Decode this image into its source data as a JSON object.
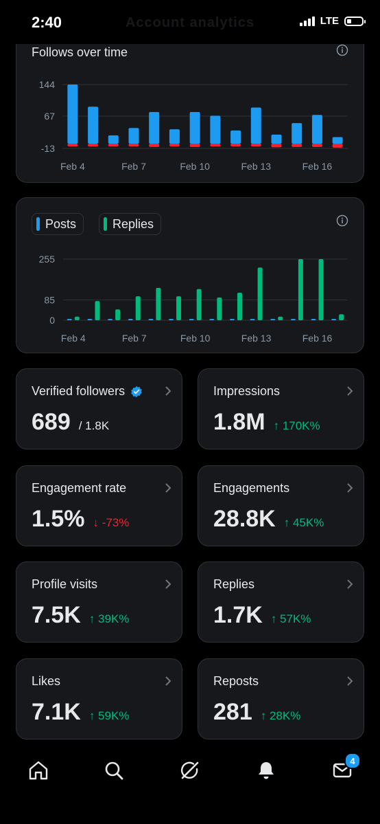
{
  "status_bar": {
    "time": "2:40",
    "network": "LTE"
  },
  "header": {
    "title": "Account analytics"
  },
  "follows_chart": {
    "title": "Follows over time",
    "icon": "info-icon"
  },
  "posts_chart": {
    "legend": [
      {
        "label": "Posts",
        "color": "#1d9bf0"
      },
      {
        "label": "Replies",
        "color": "#00ba7c"
      }
    ],
    "icon": "info-icon"
  },
  "chart_data": [
    {
      "type": "bar",
      "title": "Follows over time",
      "categories": [
        "Feb 4",
        "Feb 5",
        "Feb 6",
        "Feb 7",
        "Feb 8",
        "Feb 9",
        "Feb 10",
        "Feb 11",
        "Feb 12",
        "Feb 13",
        "Feb 14",
        "Feb 15",
        "Feb 16",
        "Feb 17"
      ],
      "tick_labels": [
        "Feb 4",
        "Feb 7",
        "Feb 10",
        "Feb 13",
        "Feb 16"
      ],
      "y_ticks": [
        "144",
        "67",
        "-13"
      ],
      "series": [
        {
          "color": "#1d9bf0",
          "values": [
            144,
            90,
            20,
            38,
            77,
            35,
            77,
            68,
            32,
            88,
            22,
            50,
            70,
            16
          ]
        },
        {
          "color": "#f4212e",
          "values": [
            -4,
            -8,
            -7,
            -4,
            -9,
            -7,
            -9,
            -8,
            -6,
            -5,
            -10,
            -9,
            -9,
            -11
          ]
        }
      ],
      "ylim": [
        -13,
        144
      ],
      "grid": true
    },
    {
      "type": "bar",
      "categories": [
        "Feb 4",
        "Feb 5",
        "Feb 6",
        "Feb 7",
        "Feb 8",
        "Feb 9",
        "Feb 10",
        "Feb 11",
        "Feb 12",
        "Feb 13",
        "Feb 14",
        "Feb 15",
        "Feb 16",
        "Feb 17"
      ],
      "tick_labels": [
        "Feb 4",
        "Feb 7",
        "Feb 10",
        "Feb 13",
        "Feb 16"
      ],
      "y_ticks": [
        "255",
        "85",
        "0"
      ],
      "series": [
        {
          "name": "Posts",
          "color": "#1d9bf0",
          "values": [
            3,
            3,
            3,
            3,
            3,
            3,
            3,
            3,
            3,
            3,
            2,
            3,
            3,
            0
          ]
        },
        {
          "name": "Replies",
          "color": "#00ba7c",
          "values": [
            15,
            80,
            45,
            100,
            135,
            100,
            130,
            95,
            115,
            220,
            15,
            255,
            255,
            25
          ]
        }
      ],
      "ylim": [
        0,
        255
      ],
      "grid": true
    }
  ],
  "stats": {
    "verified": {
      "title": "Verified followers",
      "value": "689",
      "sub": "/ 1.8K"
    },
    "impressions": {
      "title": "Impressions",
      "value": "1.8M",
      "change": "↑ 170K%"
    },
    "engagement_rate": {
      "title": "Engagement rate",
      "value": "1.5%",
      "change": "↓ -73%"
    },
    "engagements": {
      "title": "Engagements",
      "value": "28.8K",
      "change": "↑ 45K%"
    },
    "profile_visits": {
      "title": "Profile visits",
      "value": "7.5K",
      "change": "↑ 39K%"
    },
    "replies": {
      "title": "Replies",
      "value": "1.7K",
      "change": "↑ 57K%"
    },
    "likes": {
      "title": "Likes",
      "value": "7.1K",
      "change": "↑ 59K%"
    },
    "reposts": {
      "title": "Reposts",
      "value": "281",
      "change": "↑ 28K%"
    }
  },
  "bottom_nav": {
    "items": [
      "home-icon",
      "search-icon",
      "grok-icon",
      "notifications-icon",
      "messages-icon"
    ],
    "messages_badge": "4"
  },
  "colors": {
    "accent": "#1d9bf0",
    "positive": "#00ba7c",
    "negative": "#f4212e",
    "card_bg": "#16181c",
    "border": "#2f3336"
  }
}
